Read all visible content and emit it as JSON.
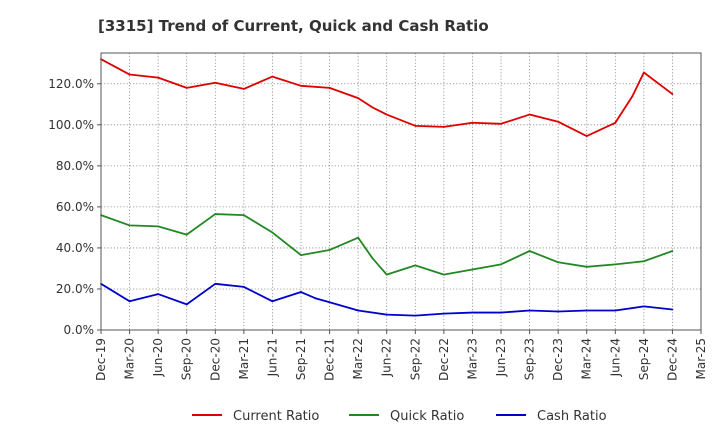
{
  "chart_data": {
    "type": "line",
    "title": "[3315]  Trend of Current, Quick and Cash Ratio",
    "xlabel": "",
    "ylabel": "",
    "ylim": [
      0,
      135
    ],
    "y_ticks": [
      {
        "value": 0,
        "label": "0.0%"
      },
      {
        "value": 20,
        "label": "20.0%"
      },
      {
        "value": 40,
        "label": "40.0%"
      },
      {
        "value": 60,
        "label": "60.0%"
      },
      {
        "value": 80,
        "label": "80.0%"
      },
      {
        "value": 100,
        "label": "100.0%"
      },
      {
        "value": 120,
        "label": "120.0%"
      }
    ],
    "x_tick_labels": [
      "Dec-19",
      "Mar-20",
      "Jun-20",
      "Sep-20",
      "Dec-20",
      "Mar-21",
      "Jun-21",
      "Sep-21",
      "Dec-21",
      "Mar-22",
      "Jun-22",
      "Sep-22",
      "Dec-22",
      "Mar-23",
      "Jun-23",
      "Sep-23",
      "Dec-23",
      "Mar-24",
      "Jun-24",
      "Sep-24",
      "Dec-24",
      "Mar-25"
    ],
    "grid": true,
    "legend_position": "bottom",
    "series": [
      {
        "name": "Current Ratio",
        "color": "#dd0000",
        "x": [
          0,
          1,
          2,
          3,
          4,
          5,
          6,
          7,
          8,
          9,
          9.5,
          10,
          11,
          12,
          13,
          14,
          15,
          16,
          17,
          18,
          18.6,
          19,
          20
        ],
        "values": [
          132,
          124.5,
          123,
          118,
          120.5,
          117.5,
          123.5,
          119,
          118,
          113,
          108.5,
          105,
          99.5,
          99,
          101,
          100.5,
          105,
          101.5,
          94.5,
          101,
          114,
          125.5,
          115
        ]
      },
      {
        "name": "Quick Ratio",
        "color": "#228822",
        "x": [
          0,
          1,
          2,
          3,
          4,
          5,
          6,
          7,
          8,
          9,
          9.5,
          10,
          11,
          12,
          13,
          14,
          15,
          16,
          17,
          18,
          19,
          20
        ],
        "values": [
          56,
          51,
          50.5,
          46.5,
          56.5,
          56,
          47.5,
          36.5,
          39,
          45,
          35,
          27,
          31.5,
          27,
          29.5,
          32,
          38.5,
          33,
          30.8,
          32,
          33.5,
          38.5
        ]
      },
      {
        "name": "Cash Ratio",
        "color": "#0000cc",
        "x": [
          0,
          1,
          2,
          3,
          4,
          5,
          6,
          7,
          7.5,
          8,
          9,
          10,
          11,
          12,
          13,
          14,
          15,
          16,
          17,
          18,
          19,
          20
        ],
        "values": [
          22.5,
          14,
          17.5,
          12.5,
          22.5,
          21,
          14,
          18.5,
          15.5,
          13.5,
          9.5,
          7.5,
          7,
          8,
          8.5,
          8.5,
          9.5,
          9,
          9.5,
          9.5,
          11.5,
          10
        ]
      }
    ]
  }
}
